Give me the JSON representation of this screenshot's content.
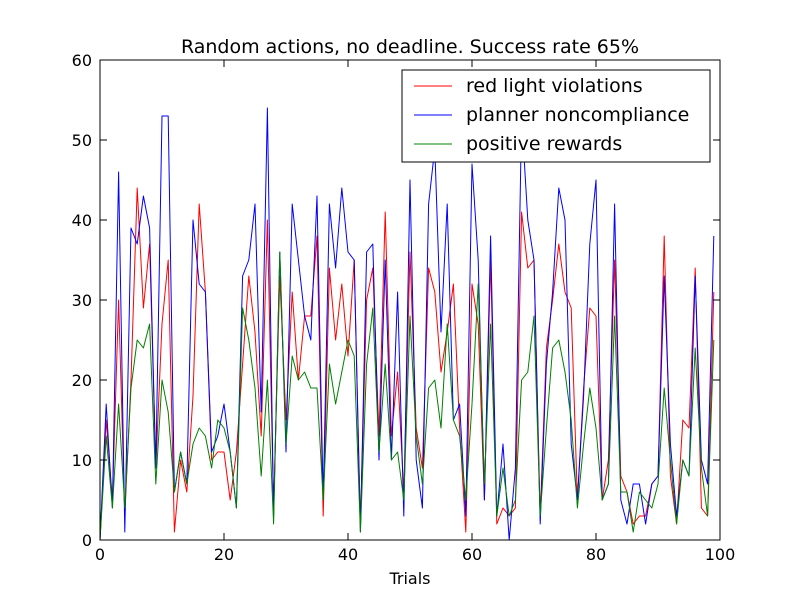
{
  "chart_data": {
    "type": "line",
    "title": "Random actions, no deadline. Success rate 65%",
    "xlabel": "Trials",
    "ylabel": "",
    "xlim": [
      0,
      100
    ],
    "ylim": [
      0,
      60
    ],
    "xticks": [
      0,
      20,
      40,
      60,
      80,
      100
    ],
    "yticks": [
      0,
      10,
      20,
      30,
      40,
      50,
      60
    ],
    "grid": false,
    "legend_position": "top-right",
    "x": [
      0,
      1,
      2,
      3,
      4,
      5,
      6,
      7,
      8,
      9,
      10,
      11,
      12,
      13,
      14,
      15,
      16,
      17,
      18,
      19,
      20,
      21,
      22,
      23,
      24,
      25,
      26,
      27,
      28,
      29,
      30,
      31,
      32,
      33,
      34,
      35,
      36,
      37,
      38,
      39,
      40,
      41,
      42,
      43,
      44,
      45,
      46,
      47,
      48,
      49,
      50,
      51,
      52,
      53,
      54,
      55,
      56,
      57,
      58,
      59,
      60,
      61,
      62,
      63,
      64,
      65,
      66,
      67,
      68,
      69,
      70,
      71,
      72,
      73,
      74,
      75,
      76,
      77,
      78,
      79,
      80,
      81,
      82,
      83,
      84,
      85,
      86,
      87,
      88,
      89,
      90,
      91,
      92,
      93,
      94,
      95,
      96,
      97,
      98,
      99
    ],
    "series": [
      {
        "name": "red light violations",
        "color": "#ff0000",
        "values": [
          0,
          15,
          5,
          30,
          3,
          20,
          44,
          29,
          37,
          9,
          27,
          35,
          1,
          10,
          6,
          18,
          42,
          31,
          10,
          11,
          11,
          5,
          11,
          22,
          33,
          26,
          13,
          40,
          4,
          33,
          15,
          31,
          20,
          28,
          28,
          38,
          3,
          34,
          25,
          32,
          23,
          35,
          2,
          30,
          34,
          13,
          41,
          13,
          21,
          6,
          36,
          14,
          9,
          34,
          31,
          21,
          26,
          32,
          14,
          1,
          32,
          27,
          5,
          35,
          2,
          4,
          3,
          4,
          41,
          34,
          35,
          3,
          24,
          30,
          37,
          31,
          29,
          5,
          19,
          29,
          28,
          5,
          10,
          35,
          8,
          6,
          2,
          3,
          3,
          7,
          8,
          38,
          8,
          2,
          15,
          14,
          34,
          4,
          3,
          31
        ]
      },
      {
        "name": "planner noncompliance",
        "color": "#0000ff",
        "values": [
          0,
          17,
          4,
          46,
          1,
          39,
          37,
          43,
          39,
          9,
          53,
          53,
          6,
          11,
          7,
          40,
          32,
          31,
          11,
          13,
          17,
          11,
          4,
          33,
          35,
          42,
          16,
          54,
          3,
          36,
          11,
          42,
          35,
          28,
          25,
          43,
          5,
          42,
          34,
          44,
          36,
          35,
          1,
          36,
          37,
          10,
          35,
          10,
          31,
          3,
          45,
          10,
          4,
          42,
          49,
          26,
          42,
          15,
          17,
          3,
          47,
          35,
          5,
          38,
          3,
          12,
          0,
          9,
          53,
          40,
          35,
          2,
          22,
          31,
          44,
          40,
          12,
          5,
          18,
          37,
          45,
          5,
          7,
          42,
          5,
          2,
          7,
          7,
          2,
          7,
          8,
          33,
          12,
          3,
          10,
          8,
          33,
          10,
          7,
          38
        ]
      },
      {
        "name": "positive rewards",
        "color": "#008000",
        "values": [
          0,
          13,
          4,
          17,
          4,
          19,
          25,
          24,
          27,
          7,
          20,
          16,
          6,
          11,
          7,
          12,
          14,
          13,
          9,
          15,
          14,
          11,
          4,
          29,
          25,
          19,
          8,
          20,
          2,
          36,
          12,
          23,
          20,
          21,
          19,
          19,
          5,
          22,
          17,
          21,
          25,
          23,
          1,
          22,
          29,
          11,
          22,
          10,
          11,
          5,
          28,
          13,
          7,
          19,
          20,
          14,
          27,
          15,
          13,
          5,
          17,
          32,
          7,
          27,
          3,
          9,
          3,
          5,
          20,
          21,
          28,
          3,
          14,
          24,
          25,
          21,
          15,
          4,
          12,
          19,
          14,
          5,
          7,
          28,
          6,
          6,
          1,
          6,
          5,
          4,
          7,
          19,
          10,
          2,
          10,
          8,
          24,
          9,
          3,
          25
        ]
      }
    ]
  }
}
